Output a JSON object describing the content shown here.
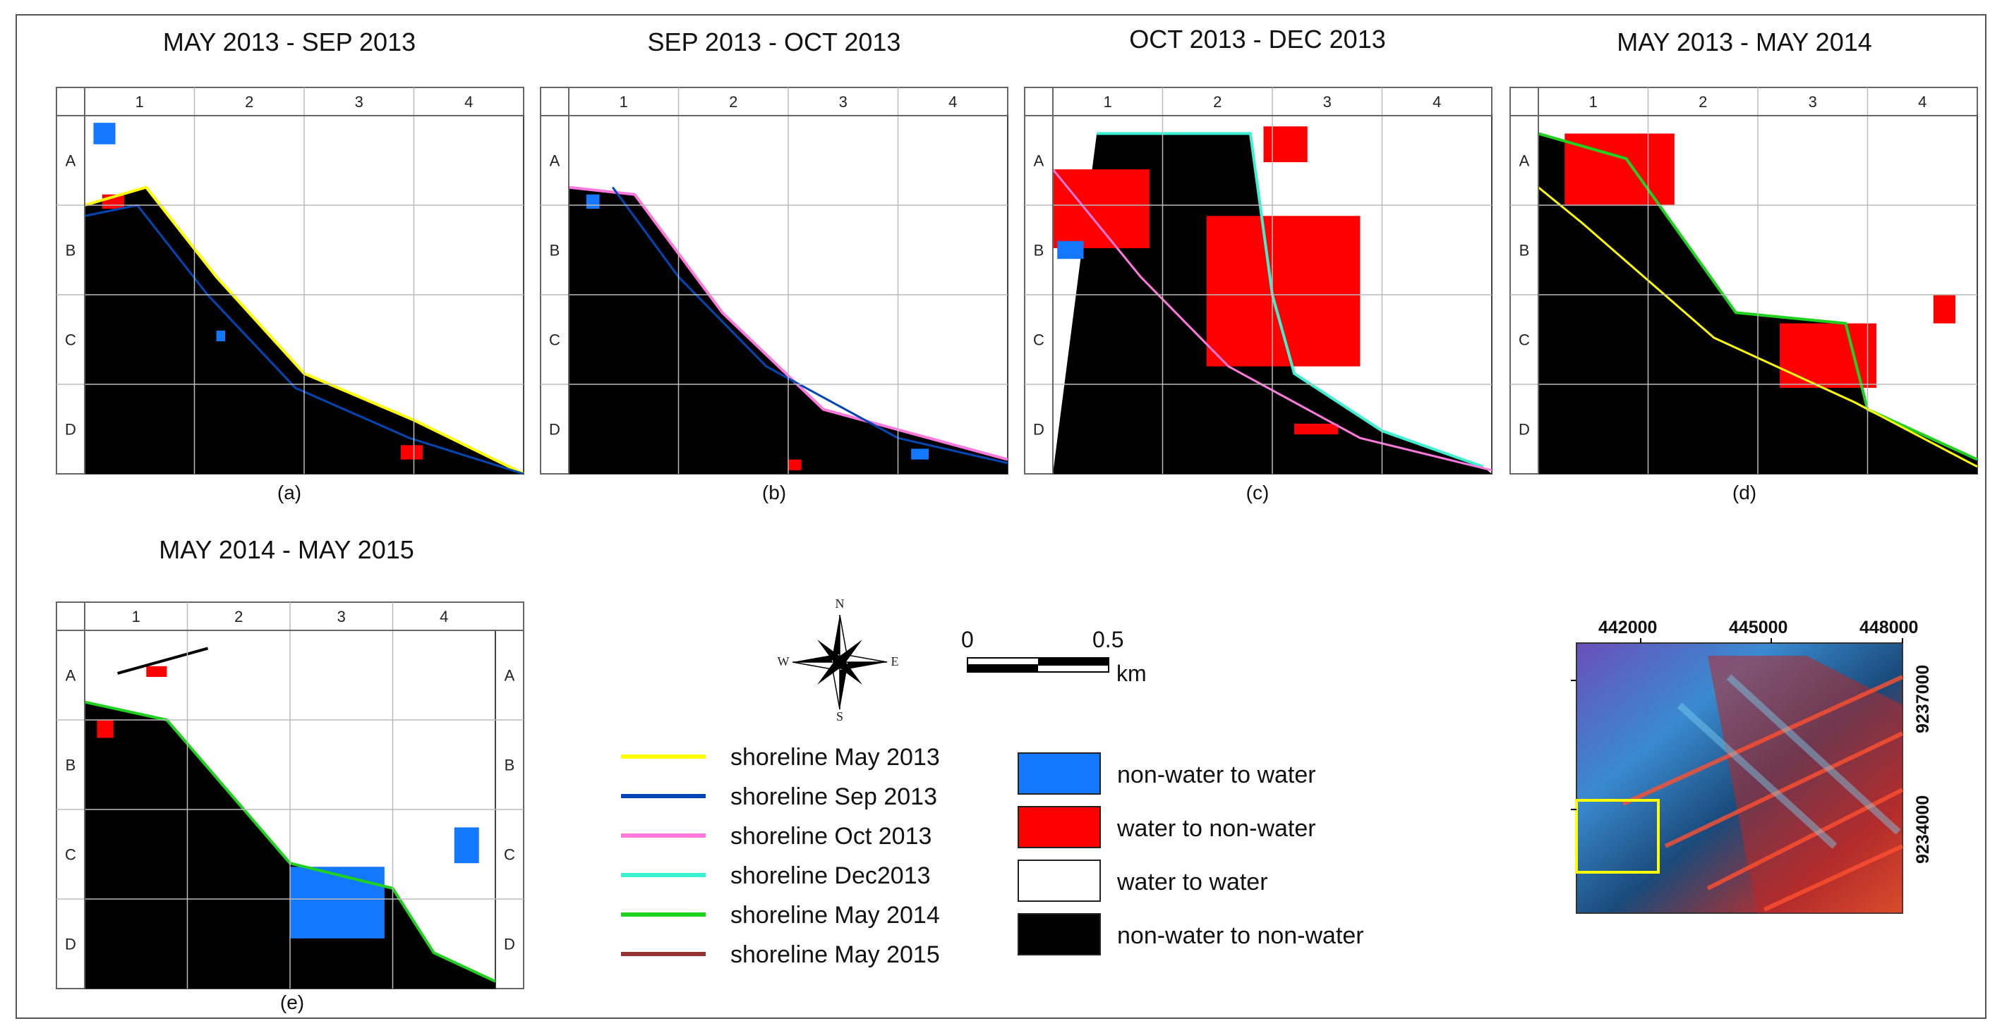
{
  "panels": [
    {
      "id": "a",
      "title": "MAY 2013 - SEP 2013",
      "caption": "(a)"
    },
    {
      "id": "b",
      "title": "SEP 2013 - OCT 2013",
      "caption": "(b)"
    },
    {
      "id": "c",
      "title": "OCT 2013 - DEC 2013",
      "caption": "(c)"
    },
    {
      "id": "d",
      "title": "MAY 2013 - MAY 2014",
      "caption": "(d)"
    },
    {
      "id": "e",
      "title": "MAY 2014 - MAY 2015",
      "caption": "(e)"
    }
  ],
  "grid": {
    "columns": [
      "1",
      "2",
      "3",
      "4"
    ],
    "rows": [
      "A",
      "B",
      "C",
      "D"
    ]
  },
  "compass": {
    "n": "N",
    "s": "S",
    "e": "E",
    "w": "W"
  },
  "scalebar": {
    "start": "0",
    "end": "0.5",
    "unit": "km"
  },
  "shoreline_legend": [
    {
      "label": "shoreline May 2013",
      "color": "#ffff00"
    },
    {
      "label": "shoreline Sep 2013",
      "color": "#0046b4"
    },
    {
      "label": "shoreline Oct 2013",
      "color": "#ff78dc"
    },
    {
      "label": "shoreline Dec2013",
      "color": "#3cf0d2"
    },
    {
      "label": "shoreline May 2014",
      "color": "#1ed21e"
    },
    {
      "label": "shoreline May 2015",
      "color": "#963232"
    }
  ],
  "change_legend": [
    {
      "label": "non-water to water",
      "color": "#1478ff"
    },
    {
      "label": "water  to non-water",
      "color": "#ff0000"
    },
    {
      "label": "water  to water",
      "color": "#ffffff"
    },
    {
      "label": "non-water to non-water",
      "color": "#000000"
    }
  ],
  "inset": {
    "x_labels": [
      "442000",
      "445000",
      "448000"
    ],
    "y_labels": [
      "9237000",
      "9234000"
    ]
  }
}
